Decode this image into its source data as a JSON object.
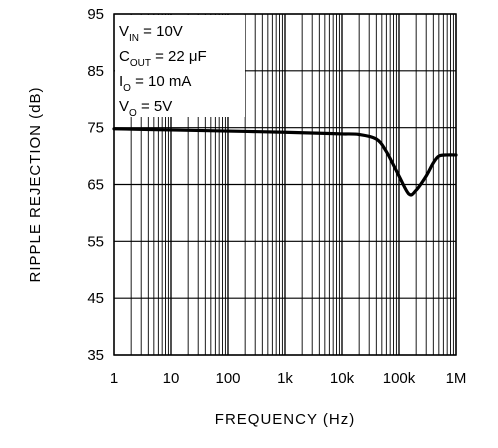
{
  "chart_data": {
    "type": "line",
    "title": "",
    "xlabel": "FREQUENCY (Hz)",
    "ylabel": "RIPPLE REJECTION (dB)",
    "x_scale": "log",
    "xlim": [
      1,
      1000000
    ],
    "ylim": [
      35,
      95
    ],
    "x_ticks": [
      {
        "value": 1,
        "label": "1"
      },
      {
        "value": 10,
        "label": "10"
      },
      {
        "value": 100,
        "label": "100"
      },
      {
        "value": 1000,
        "label": "1k"
      },
      {
        "value": 10000,
        "label": "10k"
      },
      {
        "value": 100000,
        "label": "100k"
      },
      {
        "value": 1000000,
        "label": "1M"
      }
    ],
    "y_ticks": [
      {
        "value": 35,
        "label": "35"
      },
      {
        "value": 45,
        "label": "45"
      },
      {
        "value": 55,
        "label": "55"
      },
      {
        "value": 65,
        "label": "65"
      },
      {
        "value": 75,
        "label": "75"
      },
      {
        "value": 85,
        "label": "85"
      },
      {
        "value": 95,
        "label": "95"
      }
    ],
    "grid": true,
    "annotation_lines": [
      {
        "main": "V",
        "sub": "IN",
        "rest": " = 10V"
      },
      {
        "main": "C",
        "sub": "OUT",
        "rest": " = 22 μF"
      },
      {
        "main": "I",
        "sub": "O",
        "rest": " = 10 mA"
      },
      {
        "main": "V",
        "sub": "O",
        "rest": " = 5V"
      }
    ],
    "series": [
      {
        "color": "#000000",
        "x": [
          1,
          10,
          100,
          1000,
          5000,
          10000,
          20000,
          40000,
          60000,
          100000,
          150000,
          200000,
          300000,
          400000,
          500000,
          700000,
          1000000
        ],
        "y": [
          74.8,
          74.6,
          74.4,
          74.2,
          74.0,
          73.9,
          73.8,
          73.0,
          70.8,
          66.5,
          63.3,
          64.0,
          66.5,
          68.8,
          70.0,
          70.2,
          70.2
        ]
      }
    ]
  }
}
